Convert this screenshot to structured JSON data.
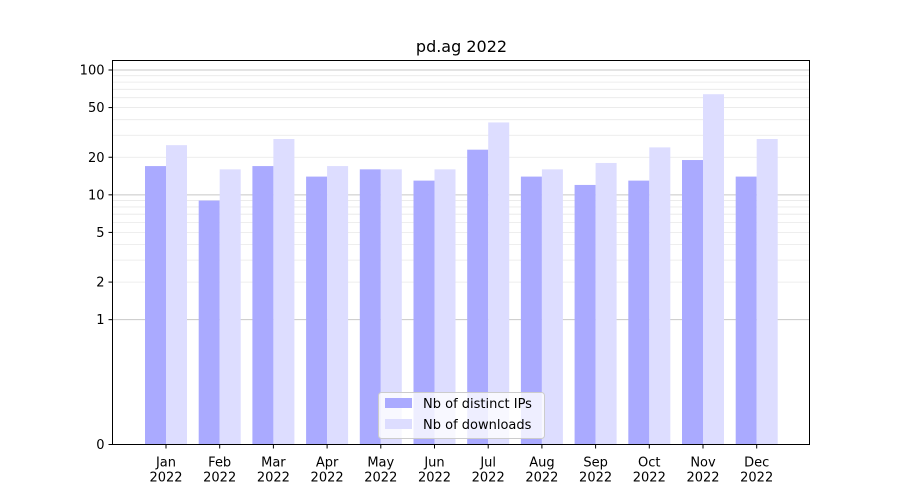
{
  "chart_data": {
    "type": "bar",
    "title": "pd.ag 2022",
    "xlabel": "",
    "ylabel": "",
    "yscale": "symlog",
    "ylim": [
      0,
      100
    ],
    "yticks": [
      0,
      1,
      2,
      5,
      10,
      20,
      50,
      100
    ],
    "categories": [
      [
        "Jan",
        "2022"
      ],
      [
        "Feb",
        "2022"
      ],
      [
        "Mar",
        "2022"
      ],
      [
        "Apr",
        "2022"
      ],
      [
        "May",
        "2022"
      ],
      [
        "Jun",
        "2022"
      ],
      [
        "Jul",
        "2022"
      ],
      [
        "Aug",
        "2022"
      ],
      [
        "Sep",
        "2022"
      ],
      [
        "Oct",
        "2022"
      ],
      [
        "Nov",
        "2022"
      ],
      [
        "Dec",
        "2022"
      ]
    ],
    "series": [
      {
        "name": "Nb of distinct IPs",
        "color": "#aaaaff",
        "values": [
          17,
          9,
          17,
          14,
          16,
          13,
          23,
          14,
          12,
          13,
          19,
          14
        ]
      },
      {
        "name": "Nb of downloads",
        "color": "#ddddff",
        "values": [
          25,
          16,
          28,
          17,
          16,
          16,
          38,
          16,
          18,
          24,
          64,
          28
        ]
      }
    ],
    "legend_position": "lower center",
    "grid": true
  }
}
